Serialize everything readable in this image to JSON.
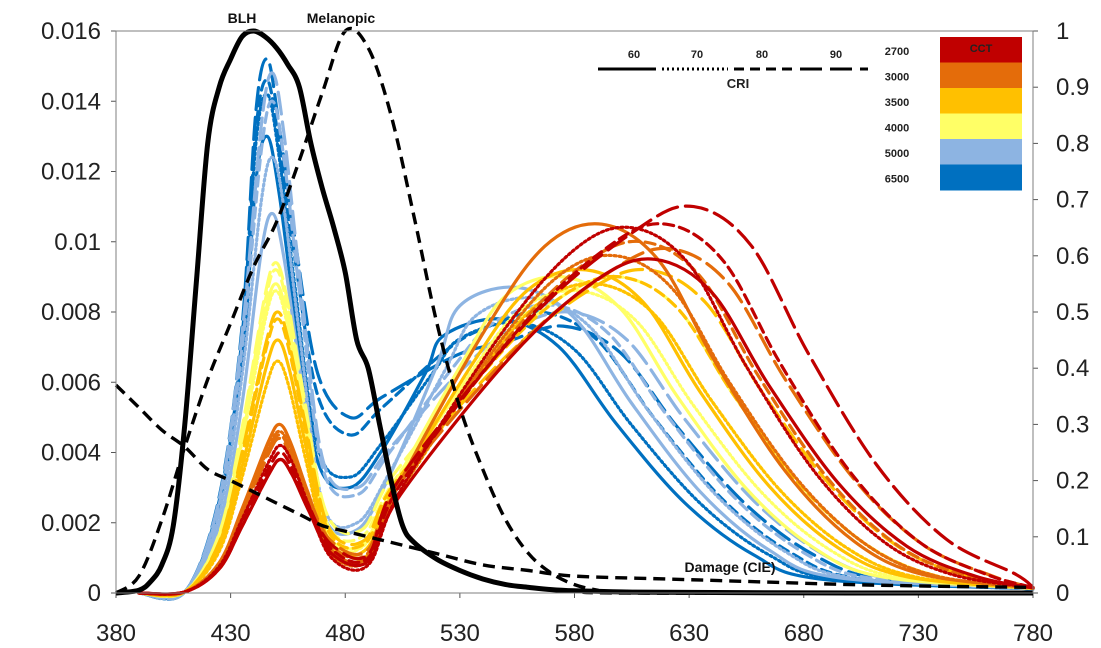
{
  "chart_data": {
    "type": "line",
    "x_ticks": [
      "380",
      "430",
      "480",
      "530",
      "580",
      "630",
      "680",
      "730",
      "780"
    ],
    "y_left_ticks": [
      "0",
      "0.002",
      "0.004",
      "0.006",
      "0.008",
      "0.01",
      "0.012",
      "0.014",
      "0.016"
    ],
    "y_right_ticks": [
      "0",
      "0.1",
      "0.2",
      "0.3",
      "0.4",
      "0.5",
      "0.6",
      "0.7",
      "0.8",
      "0.9",
      "1"
    ],
    "xlim": [
      380,
      780
    ],
    "ylim_left": [
      0,
      0.016
    ],
    "ylim_right": [
      0,
      1
    ],
    "annotations": {
      "blh": "BLH",
      "melanopic": "Melanopic",
      "damage": "Damage (CIE)"
    },
    "legend": {
      "cri_title": "CRI",
      "cri_values": [
        {
          "label": "60",
          "dash": "solid"
        },
        {
          "label": "70",
          "dash": "dotted"
        },
        {
          "label": "80",
          "dash": "dashed"
        },
        {
          "label": "90",
          "dash": "longdash"
        }
      ],
      "cct_title": "CCT",
      "cct_values": [
        {
          "label": "2700",
          "color": "#c00000"
        },
        {
          "label": "3000",
          "color": "#e46c0a"
        },
        {
          "label": "3500",
          "color": "#ffc000"
        },
        {
          "label": "4000",
          "color": "#ffff66"
        },
        {
          "label": "5000",
          "color": "#8db4e2"
        },
        {
          "label": "6500",
          "color": "#0070c0"
        }
      ]
    },
    "reference_curves": [
      {
        "name": "BLH",
        "axis": "right",
        "color": "#000000",
        "style": "solid",
        "points": [
          [
            380,
            0
          ],
          [
            390,
            0.005
          ],
          [
            395,
            0.02
          ],
          [
            400,
            0.05
          ],
          [
            405,
            0.12
          ],
          [
            410,
            0.3
          ],
          [
            415,
            0.55
          ],
          [
            420,
            0.8
          ],
          [
            425,
            0.9
          ],
          [
            430,
            0.95
          ],
          [
            435,
            0.99
          ],
          [
            440,
            1.0
          ],
          [
            445,
            0.99
          ],
          [
            450,
            0.97
          ],
          [
            455,
            0.94
          ],
          [
            460,
            0.9
          ],
          [
            465,
            0.8
          ],
          [
            470,
            0.72
          ],
          [
            475,
            0.65
          ],
          [
            480,
            0.57
          ],
          [
            485,
            0.45
          ],
          [
            490,
            0.4
          ],
          [
            495,
            0.3
          ],
          [
            500,
            0.2
          ],
          [
            505,
            0.12
          ],
          [
            510,
            0.09
          ],
          [
            520,
            0.06
          ],
          [
            530,
            0.04
          ],
          [
            540,
            0.025
          ],
          [
            550,
            0.015
          ],
          [
            560,
            0.01
          ],
          [
            570,
            0.006
          ],
          [
            580,
            0.004
          ],
          [
            600,
            0.002
          ],
          [
            630,
            0.001
          ],
          [
            700,
            0
          ],
          [
            780,
            0
          ]
        ]
      },
      {
        "name": "Melanopic",
        "axis": "right",
        "color": "#000000",
        "style": "dashed",
        "points": [
          [
            380,
            0
          ],
          [
            390,
            0.03
          ],
          [
            400,
            0.13
          ],
          [
            410,
            0.26
          ],
          [
            420,
            0.38
          ],
          [
            430,
            0.48
          ],
          [
            440,
            0.58
          ],
          [
            450,
            0.66
          ],
          [
            460,
            0.77
          ],
          [
            470,
            0.89
          ],
          [
            480,
            1.0
          ],
          [
            490,
            0.97
          ],
          [
            500,
            0.85
          ],
          [
            510,
            0.67
          ],
          [
            520,
            0.48
          ],
          [
            530,
            0.33
          ],
          [
            540,
            0.22
          ],
          [
            550,
            0.13
          ],
          [
            560,
            0.07
          ],
          [
            570,
            0.035
          ],
          [
            580,
            0.015
          ],
          [
            590,
            0.005
          ],
          [
            600,
            0
          ],
          [
            780,
            0
          ]
        ]
      },
      {
        "name": "Damage (CIE)",
        "axis": "right",
        "color": "#000000",
        "style": "dashed",
        "points": [
          [
            380,
            0.37
          ],
          [
            390,
            0.33
          ],
          [
            400,
            0.29
          ],
          [
            410,
            0.26
          ],
          [
            420,
            0.22
          ],
          [
            430,
            0.2
          ],
          [
            440,
            0.18
          ],
          [
            450,
            0.16
          ],
          [
            460,
            0.14
          ],
          [
            470,
            0.12
          ],
          [
            480,
            0.11
          ],
          [
            490,
            0.1
          ],
          [
            500,
            0.09
          ],
          [
            520,
            0.07
          ],
          [
            540,
            0.05
          ],
          [
            560,
            0.04
          ],
          [
            580,
            0.03
          ],
          [
            620,
            0.025
          ],
          [
            660,
            0.02
          ],
          [
            700,
            0.015
          ],
          [
            740,
            0.012
          ],
          [
            780,
            0.01
          ]
        ]
      }
    ],
    "series": [
      {
        "cct": "2700",
        "cri": "60",
        "peak1": 0.0038,
        "valley": 0.0009,
        "peak2": 0.0095,
        "peak2x": 615
      },
      {
        "cct": "2700",
        "cri": "70",
        "peak1": 0.0042,
        "valley": 0.0008,
        "peak2": 0.0104,
        "peak2x": 605
      },
      {
        "cct": "2700",
        "cri": "80",
        "peak1": 0.004,
        "valley": 0.001,
        "peak2": 0.0105,
        "peak2x": 620
      },
      {
        "cct": "2700",
        "cri": "90",
        "peak1": 0.0038,
        "valley": 0.0011,
        "peak2": 0.011,
        "peak2x": 632
      },
      {
        "cct": "3000",
        "cri": "60",
        "peak1": 0.0048,
        "valley": 0.001,
        "peak2": 0.0105,
        "peak2x": 592
      },
      {
        "cct": "3000",
        "cri": "70",
        "peak1": 0.0046,
        "valley": 0.0009,
        "peak2": 0.0096,
        "peak2x": 598
      },
      {
        "cct": "3000",
        "cri": "80",
        "peak1": 0.0045,
        "valley": 0.0011,
        "peak2": 0.01,
        "peak2x": 610
      },
      {
        "cct": "3000",
        "cri": "90",
        "peak1": 0.0044,
        "valley": 0.0012,
        "peak2": 0.0098,
        "peak2x": 622
      },
      {
        "cct": "3500",
        "cri": "60",
        "peak1": 0.0072,
        "valley": 0.0012,
        "peak2": 0.0092,
        "peak2x": 585
      },
      {
        "cct": "3500",
        "cri": "70",
        "peak1": 0.0066,
        "valley": 0.001,
        "peak2": 0.0088,
        "peak2x": 590
      },
      {
        "cct": "3500",
        "cri": "80",
        "peak1": 0.0078,
        "valley": 0.0014,
        "peak2": 0.009,
        "peak2x": 600
      },
      {
        "cct": "3500",
        "cri": "90",
        "peak1": 0.008,
        "valley": 0.0015,
        "peak2": 0.0092,
        "peak2x": 612
      },
      {
        "cct": "4000",
        "cri": "60",
        "peak1": 0.0088,
        "valley": 0.0014,
        "peak2": 0.009,
        "peak2x": 575
      },
      {
        "cct": "4000",
        "cri": "70",
        "peak1": 0.0086,
        "valley": 0.0013,
        "peak2": 0.0086,
        "peak2x": 582
      },
      {
        "cct": "4000",
        "cri": "80",
        "peak1": 0.0092,
        "valley": 0.0016,
        "peak2": 0.0088,
        "peak2x": 590
      },
      {
        "cct": "4000",
        "cri": "90",
        "peak1": 0.0094,
        "valley": 0.0018,
        "peak2": 0.009,
        "peak2x": 600
      },
      {
        "cct": "5000",
        "cri": "60",
        "peak1": 0.0108,
        "valley": 0.0018,
        "peak2": 0.0087,
        "peak2x": 555
      },
      {
        "cct": "5000",
        "cri": "70",
        "peak1": 0.0124,
        "valley": 0.002,
        "peak2": 0.0084,
        "peak2x": 562
      },
      {
        "cct": "5000",
        "cri": "80",
        "peak1": 0.014,
        "valley": 0.0028,
        "peak2": 0.0082,
        "peak2x": 570
      },
      {
        "cct": "5000",
        "cri": "90",
        "peak1": 0.0148,
        "valley": 0.003,
        "peak2": 0.008,
        "peak2x": 578
      },
      {
        "cct": "6500",
        "cri": "60",
        "peak1": 0.013,
        "valley": 0.003,
        "peak2": 0.0078,
        "peak2x": 548
      },
      {
        "cct": "6500",
        "cri": "70",
        "peak1": 0.0142,
        "valley": 0.0033,
        "peak2": 0.0077,
        "peak2x": 555
      },
      {
        "cct": "6500",
        "cri": "80",
        "peak1": 0.0146,
        "valley": 0.0045,
        "peak2": 0.008,
        "peak2x": 565
      },
      {
        "cct": "6500",
        "cri": "90",
        "peak1": 0.0152,
        "valley": 0.005,
        "peak2": 0.0076,
        "peak2x": 575
      }
    ]
  }
}
